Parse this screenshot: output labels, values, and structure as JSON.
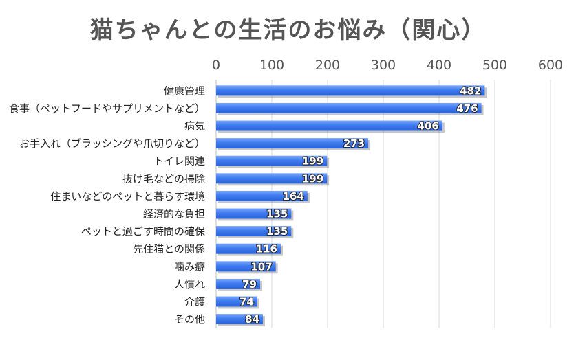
{
  "chart_data": {
    "type": "bar",
    "orientation": "horizontal",
    "title": "猫ちゃんとの生活のお悩み（関心）",
    "categories": [
      "健康管理",
      "食事（ペットフードやサプリメントなど）",
      "病気",
      "お手入れ（ブラッシングや爪切りなど）",
      "トイレ関連",
      "抜け毛などの掃除",
      "住まいなどのペットと暮らす環境",
      "経済的な負担",
      "ペットと過ごす時間の確保",
      "先住猫との関係",
      "噛み癖",
      "人慣れ",
      "介護",
      "その他"
    ],
    "values": [
      482,
      476,
      406,
      273,
      199,
      199,
      164,
      135,
      135,
      116,
      107,
      79,
      74,
      84
    ],
    "xlim": [
      0,
      600
    ],
    "xticks": [
      0,
      100,
      200,
      300,
      400,
      500,
      600
    ],
    "x_axis_position": "top",
    "grid": true,
    "legend": "none",
    "bar_color": "#3F7BF0"
  }
}
